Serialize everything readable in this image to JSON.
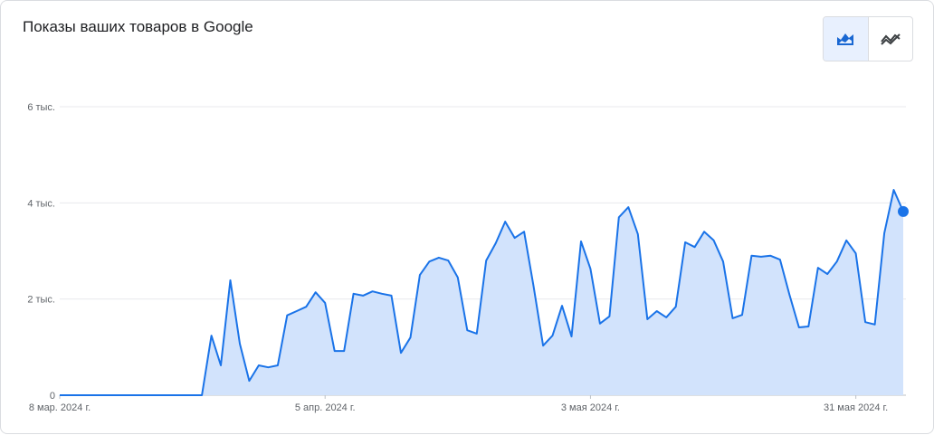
{
  "title": "Показы ваших товаров в Google",
  "view_toggle": {
    "options": [
      {
        "icon": "area-chart-icon",
        "active": true
      },
      {
        "icon": "line-trend-icon",
        "active": false
      }
    ]
  },
  "colors": {
    "line": "#1a73e8",
    "fill": "#d2e3fc",
    "grid": "#e8eaed"
  },
  "chart_data": {
    "type": "area",
    "title": "Показы ваших товаров в Google",
    "ylim": [
      0,
      6000
    ],
    "y_ticks": [
      {
        "value": 0,
        "label": "0"
      },
      {
        "value": 2000,
        "label": "2 тыс."
      },
      {
        "value": 4000,
        "label": "4 тыс."
      },
      {
        "value": 6000,
        "label": "6 тыс."
      }
    ],
    "x_ticks": [
      {
        "date": "2024-03-08",
        "label": "8 мар. 2024 г."
      },
      {
        "date": "2024-04-05",
        "label": "5 апр. 2024 г."
      },
      {
        "date": "2024-05-03",
        "label": "3 мая 2024 г."
      },
      {
        "date": "2024-05-31",
        "label": "31 мая 2024 г."
      }
    ],
    "grid": true,
    "x": [
      "2024-03-08",
      "2024-03-09",
      "2024-03-10",
      "2024-03-11",
      "2024-03-12",
      "2024-03-13",
      "2024-03-14",
      "2024-03-15",
      "2024-03-16",
      "2024-03-17",
      "2024-03-18",
      "2024-03-19",
      "2024-03-20",
      "2024-03-21",
      "2024-03-22",
      "2024-03-23",
      "2024-03-24",
      "2024-03-25",
      "2024-03-26",
      "2024-03-27",
      "2024-03-28",
      "2024-03-29",
      "2024-03-30",
      "2024-03-31",
      "2024-04-01",
      "2024-04-02",
      "2024-04-03",
      "2024-04-04",
      "2024-04-05",
      "2024-04-06",
      "2024-04-07",
      "2024-04-08",
      "2024-04-09",
      "2024-04-10",
      "2024-04-11",
      "2024-04-12",
      "2024-04-13",
      "2024-04-14",
      "2024-04-15",
      "2024-04-16",
      "2024-04-17",
      "2024-04-18",
      "2024-04-19",
      "2024-04-20",
      "2024-04-21",
      "2024-04-22",
      "2024-04-23",
      "2024-04-24",
      "2024-04-25",
      "2024-04-26",
      "2024-04-27",
      "2024-04-28",
      "2024-04-29",
      "2024-04-30",
      "2024-05-01",
      "2024-05-02",
      "2024-05-03",
      "2024-05-04",
      "2024-05-05",
      "2024-05-06",
      "2024-05-07",
      "2024-05-08",
      "2024-05-09",
      "2024-05-10",
      "2024-05-11",
      "2024-05-12",
      "2024-05-13",
      "2024-05-14",
      "2024-05-15",
      "2024-05-16",
      "2024-05-17",
      "2024-05-18",
      "2024-05-19",
      "2024-05-20",
      "2024-05-21",
      "2024-05-22",
      "2024-05-23",
      "2024-05-24",
      "2024-05-25",
      "2024-05-26",
      "2024-05-27",
      "2024-05-28",
      "2024-05-29",
      "2024-05-30",
      "2024-05-31",
      "2024-06-01",
      "2024-06-02",
      "2024-06-03",
      "2024-06-04",
      "2024-06-05"
    ],
    "series": [
      {
        "values": [
          0,
          0,
          0,
          0,
          0,
          0,
          0,
          0,
          0,
          0,
          0,
          0,
          0,
          0,
          0,
          0,
          1240,
          620,
          2390,
          1070,
          300,
          620,
          580,
          620,
          1660,
          1750,
          1840,
          2140,
          1920,
          920,
          920,
          2110,
          2070,
          2160,
          2110,
          2070,
          880,
          1200,
          2500,
          2780,
          2860,
          2800,
          2450,
          1350,
          1280,
          2800,
          3160,
          3610,
          3270,
          3400,
          2260,
          1030,
          1240,
          1860,
          1220,
          3200,
          2630,
          1490,
          1640,
          3700,
          3910,
          3350,
          1580,
          1750,
          1620,
          1840,
          3180,
          3080,
          3400,
          3220,
          2780,
          1600,
          1670,
          2900,
          2880,
          2900,
          2820,
          2090,
          1410,
          1430,
          2650,
          2520,
          2780,
          3220,
          2950,
          1520,
          1470,
          3370,
          4270,
          3820
        ]
      }
    ]
  }
}
